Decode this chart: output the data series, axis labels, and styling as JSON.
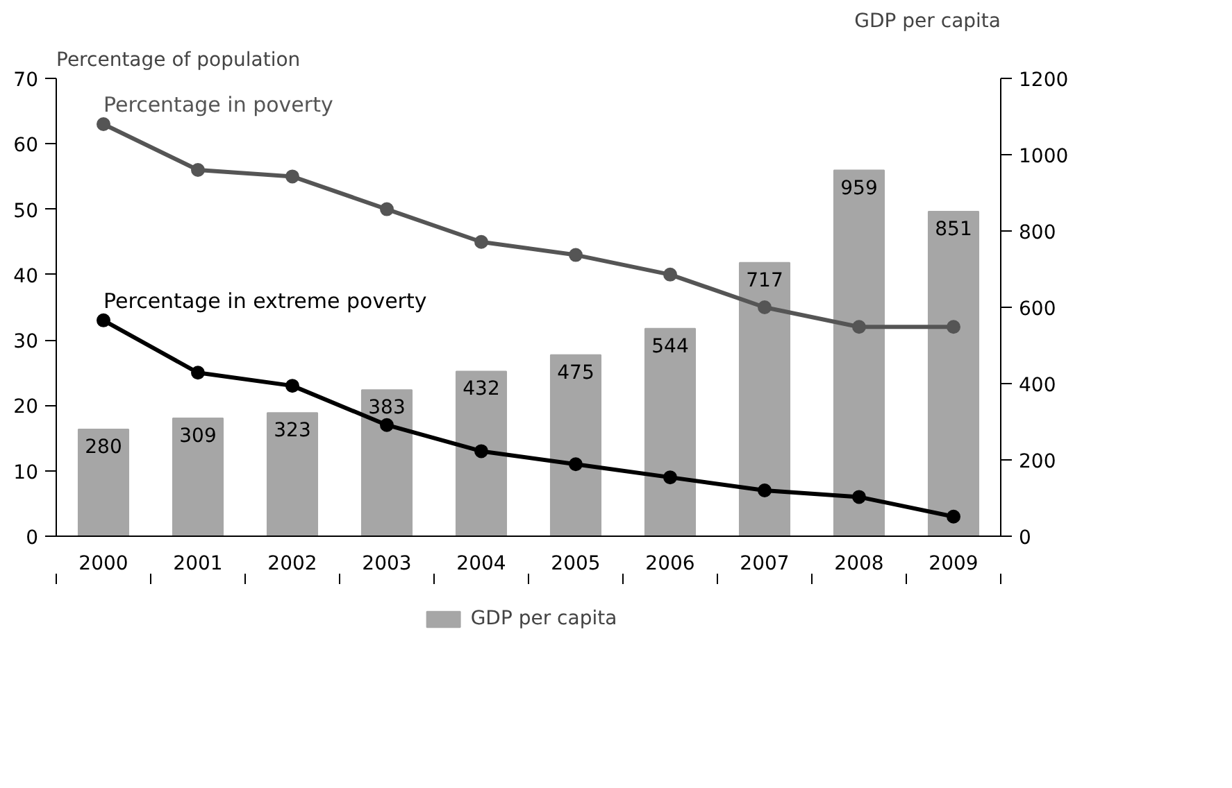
{
  "chart_data": {
    "type": "bar",
    "categories": [
      "2000",
      "2001",
      "2002",
      "2003",
      "2004",
      "2005",
      "2006",
      "2007",
      "2008",
      "2009"
    ],
    "ylabel": "Percentage of population",
    "y2label": "GDP per capita",
    "series": [
      {
        "name": "GDP per capita",
        "axis": "y2",
        "color": "#a6a6a6",
        "values": [
          280,
          309,
          323,
          383,
          432,
          475,
          544,
          717,
          959,
          851
        ],
        "value_labels": [
          "280",
          "309",
          "323",
          "383",
          "432",
          "475",
          "544",
          "717",
          "959",
          "851"
        ]
      },
      {
        "name": "Percentage in poverty",
        "type": "line",
        "color": "#555555",
        "values": [
          63,
          56,
          55,
          50,
          45,
          43,
          40,
          35,
          32,
          32
        ]
      },
      {
        "name": "Percentage in extreme poverty",
        "type": "line",
        "color": "#000000",
        "values": [
          33,
          25,
          23,
          17,
          13,
          11,
          9,
          7,
          6,
          3
        ]
      }
    ],
    "ylim": [
      0,
      70
    ],
    "yticks": [
      0,
      10,
      20,
      30,
      40,
      50,
      60,
      70
    ],
    "y2lim": [
      0,
      1200
    ],
    "y2ticks": [
      0,
      200,
      400,
      600,
      800,
      1000,
      1200
    ],
    "marker": "circle",
    "grid": false,
    "legend": "bottom"
  }
}
